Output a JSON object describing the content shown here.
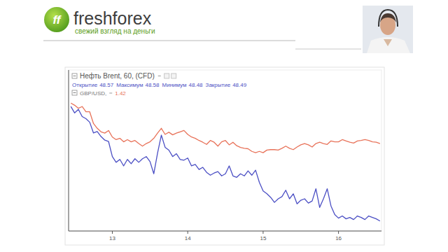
{
  "header": {
    "logo_text": "ff",
    "brand": "freshforex",
    "slogan": "свежий взгляд на деньги"
  },
  "chart_data": {
    "type": "line",
    "legend": "top-left",
    "grid": false,
    "tick_labels": "x",
    "legend_info": [
      {
        "label": "Открытие",
        "value": 48.57
      },
      {
        "label": "Максимум",
        "value": 48.58
      },
      {
        "label": "Минимум",
        "value": 48.48
      },
      {
        "label": "Закрытие",
        "value": 48.49
      }
    ],
    "xlim": [
      12.42,
      16.57
    ],
    "xticks": [
      13,
      14,
      15,
      16
    ],
    "ylim": [
      48.35,
      50.6
    ],
    "y2lim": [
      1.4,
      1.437
    ],
    "x": [
      12.45,
      12.5,
      12.55,
      12.6,
      12.65,
      12.7,
      12.75,
      12.8,
      12.85,
      12.9,
      12.95,
      13,
      13.05,
      13.1,
      13.15,
      13.2,
      13.25,
      13.3,
      13.35,
      13.4,
      13.45,
      13.5,
      13.55,
      13.6,
      13.65,
      13.7,
      13.75,
      13.8,
      13.85,
      13.9,
      13.95,
      14,
      14.05,
      14.1,
      14.15,
      14.2,
      14.25,
      14.3,
      14.35,
      14.4,
      14.45,
      14.5,
      14.55,
      14.6,
      14.65,
      14.7,
      14.75,
      14.8,
      14.85,
      14.9,
      14.95,
      15,
      15.05,
      15.1,
      15.15,
      15.2,
      15.25,
      15.3,
      15.35,
      15.4,
      15.45,
      15.5,
      15.55,
      15.6,
      15.65,
      15.7,
      15.75,
      15.8,
      15.85,
      15.9,
      15.95,
      16,
      16.05,
      16.1,
      16.15,
      16.2,
      16.25,
      16.3,
      16.35,
      16.4,
      16.45,
      16.5,
      16.55
    ],
    "series": [
      {
        "name": "Нефть Brent, 60, (CFD)",
        "color": "#4b4fc4",
        "values": [
          50.09,
          50.0,
          50.05,
          49.95,
          49.92,
          49.87,
          49.72,
          49.74,
          49.67,
          49.62,
          49.6,
          49.39,
          49.31,
          49.35,
          49.26,
          49.35,
          49.29,
          49.36,
          49.31,
          49.36,
          49.39,
          49.32,
          49.15,
          49.44,
          49.69,
          49.52,
          49.48,
          49.39,
          49.43,
          49.35,
          49.34,
          49.37,
          49.26,
          49.28,
          49.21,
          49.24,
          49.17,
          49.13,
          49.16,
          49.18,
          49.12,
          49.15,
          49.26,
          49.12,
          49.1,
          49.15,
          49.12,
          49.19,
          49.13,
          49.2,
          49.03,
          48.91,
          48.87,
          48.82,
          48.75,
          48.8,
          48.83,
          48.92,
          48.8,
          48.87,
          48.73,
          48.78,
          48.8,
          48.74,
          48.77,
          48.94,
          48.68,
          48.8,
          48.94,
          48.7,
          48.58,
          48.53,
          48.56,
          48.52,
          48.54,
          48.51,
          48.56,
          48.54,
          48.51,
          48.56,
          48.54,
          48.52,
          48.49
        ]
      },
      {
        "name": "GBP/USD,",
        "color": "#e8735a",
        "axis": "y2",
        "last_value": 1.42,
        "values": [
          1.4294,
          1.4289,
          1.4282,
          1.4286,
          1.4274,
          1.4274,
          1.4247,
          1.4236,
          1.4228,
          1.4225,
          1.4231,
          1.4216,
          1.421,
          1.4213,
          1.4205,
          1.421,
          1.4205,
          1.4208,
          1.4201,
          1.4195,
          1.4201,
          1.4205,
          1.4213,
          1.4225,
          1.4236,
          1.4222,
          1.4227,
          1.4221,
          1.4225,
          1.4228,
          1.4231,
          1.4222,
          1.4216,
          1.4213,
          1.4208,
          1.4204,
          1.4199,
          1.4208,
          1.4204,
          1.4195,
          1.4205,
          1.4208,
          1.4198,
          1.4204,
          1.4196,
          1.4192,
          1.419,
          1.4189,
          1.4183,
          1.418,
          1.4183,
          1.418,
          1.4186,
          1.4187,
          1.4187,
          1.4186,
          1.419,
          1.4195,
          1.419,
          1.4187,
          1.4193,
          1.4198,
          1.4201,
          1.4198,
          1.4193,
          1.4201,
          1.4204,
          1.4201,
          1.4199,
          1.4207,
          1.4205,
          1.4205,
          1.421,
          1.4207,
          1.4204,
          1.4202,
          1.4207,
          1.4208,
          1.421,
          1.4208,
          1.4205,
          1.4204,
          1.4201
        ]
      }
    ]
  }
}
